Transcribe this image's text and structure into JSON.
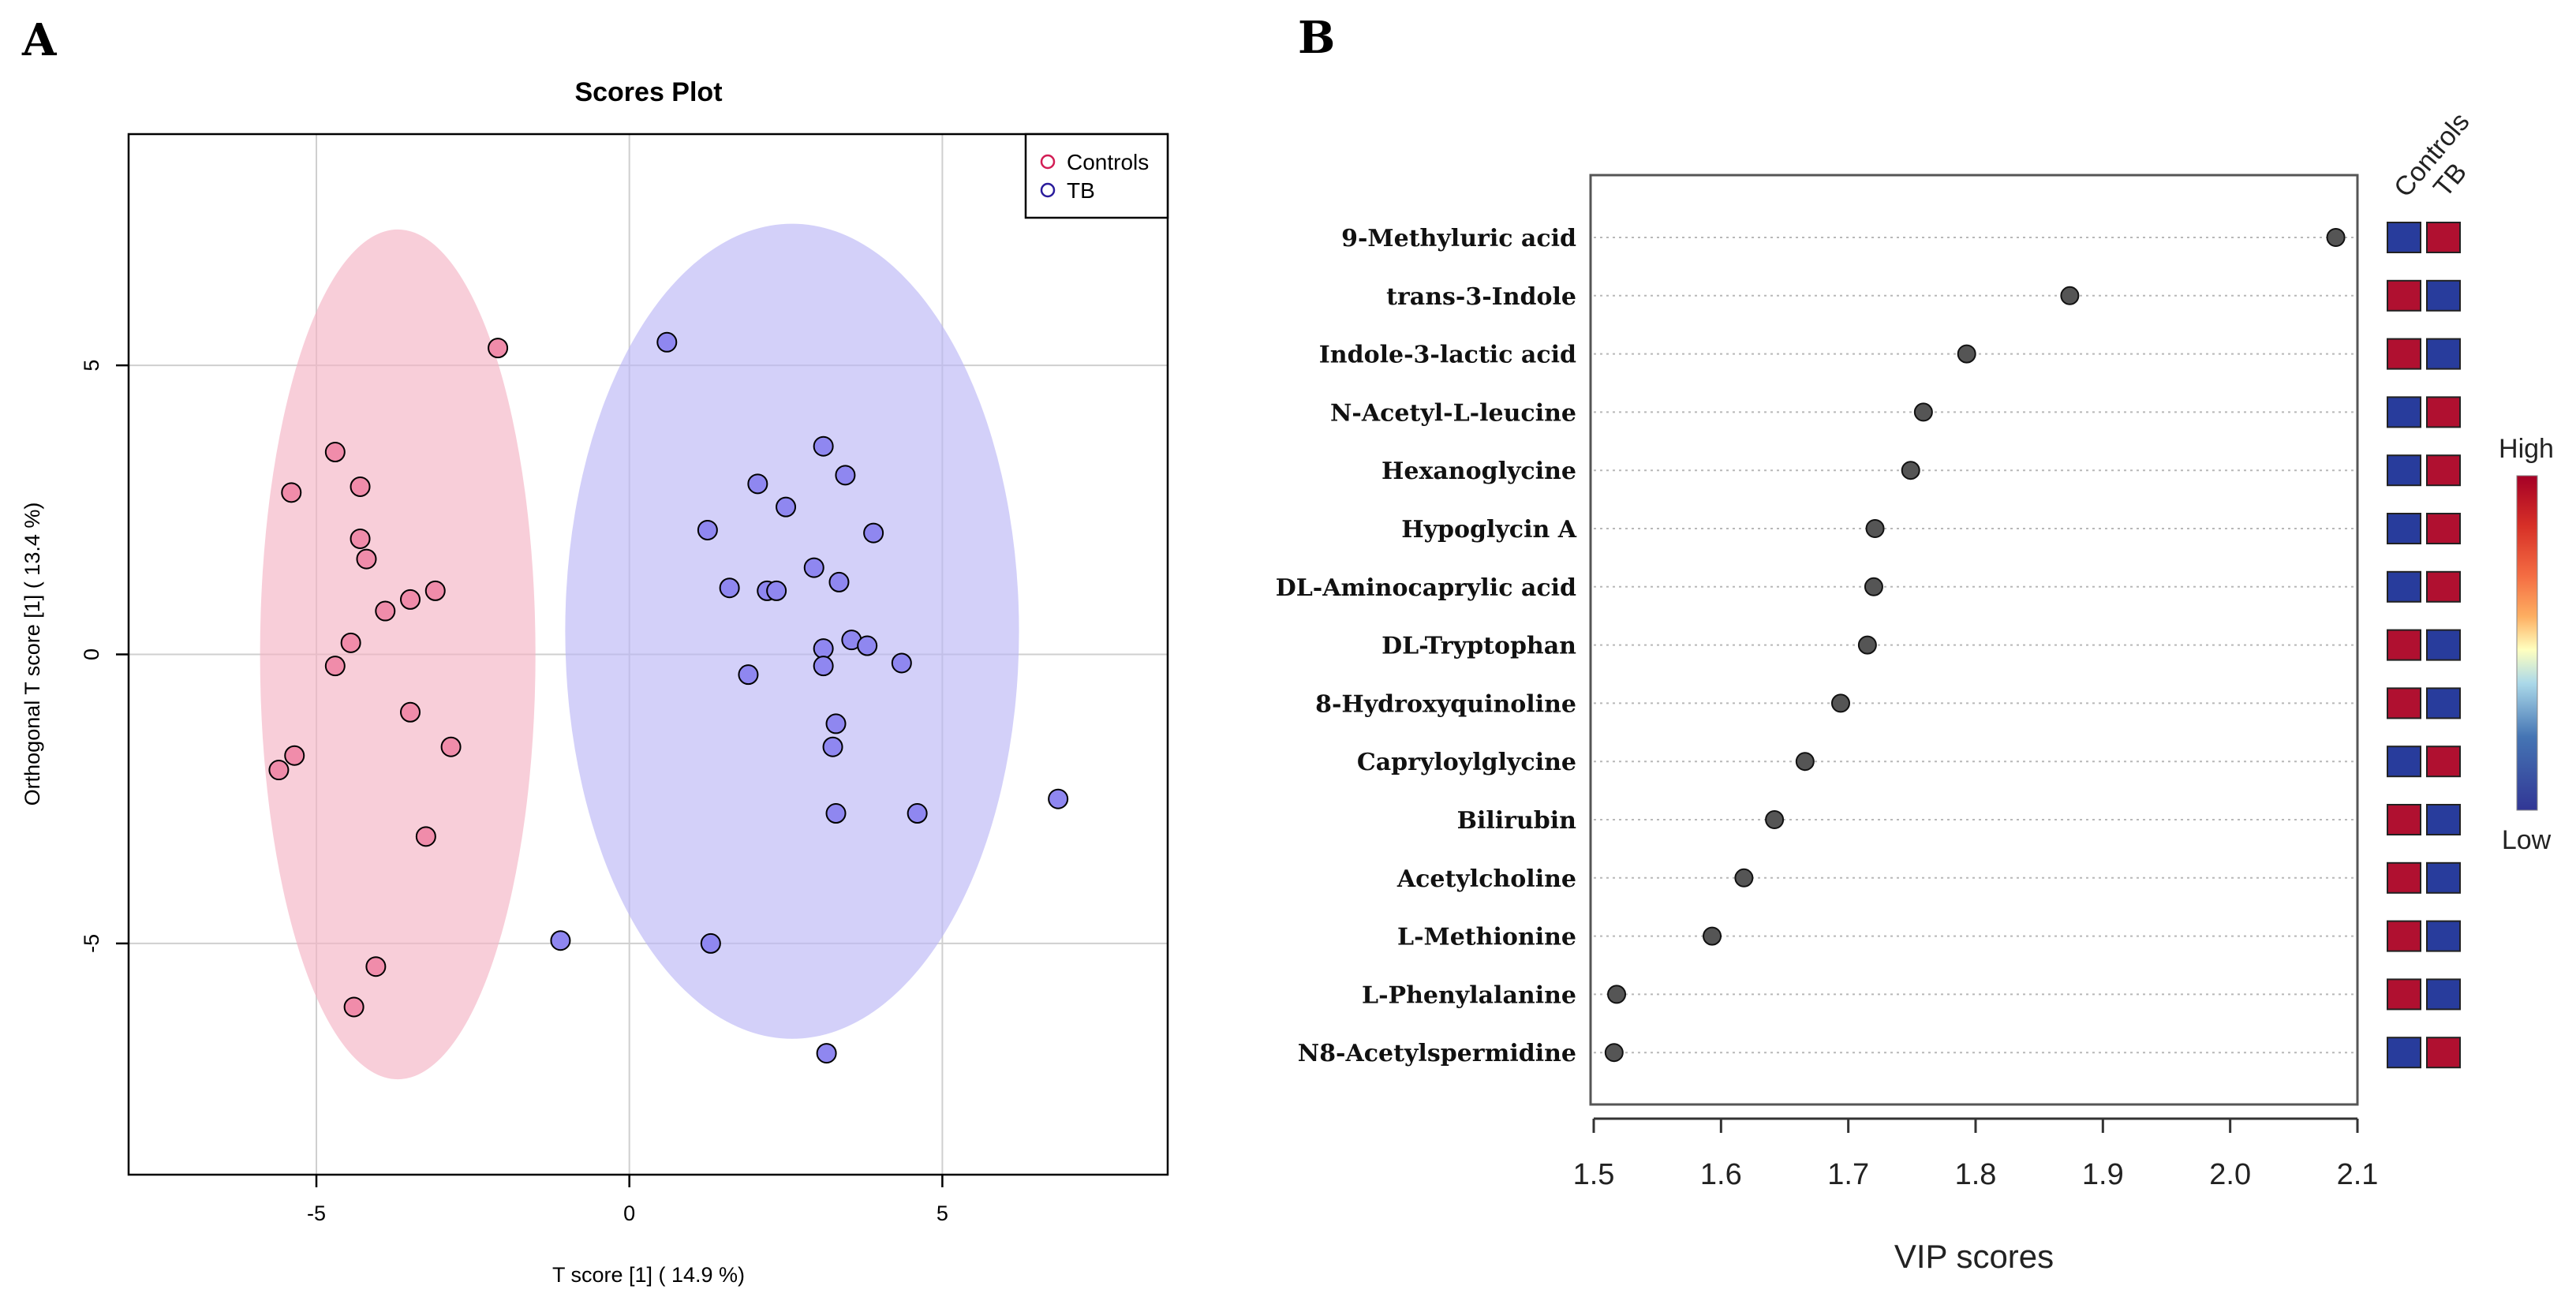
{
  "panels": {
    "a_letter": "A",
    "b_letter": "B"
  },
  "chart_data": [
    {
      "type": "scatter",
      "title": "Scores Plot",
      "xlabel": "T score [1] ( 14.9 %)",
      "ylabel": "Orthogonal T score [1] ( 13.4 %)",
      "xlim": [
        -8.0,
        8.6
      ],
      "ylim": [
        -9.0,
        9.0
      ],
      "xticks": [
        -5,
        0,
        5
      ],
      "xtick_labels": [
        "-5",
        "0",
        "5"
      ],
      "yticks": [
        -5,
        0,
        5
      ],
      "ytick_labels": [
        "-5",
        "0",
        "5"
      ],
      "grid": true,
      "legend_position": "top-right",
      "series": [
        {
          "name": "Controls",
          "color": "#f08caa",
          "ring_color": "#d21e55",
          "ellipse_color": "#f4b4c4",
          "ellipse": {
            "cx": -3.7,
            "cy": 0.0,
            "rx": 4.4,
            "ry": 7.35
          },
          "points": [
            [
              -2.1,
              5.3
            ],
            [
              -4.7,
              3.5
            ],
            [
              -5.4,
              2.8
            ],
            [
              -4.3,
              2.9
            ],
            [
              -4.3,
              2.0
            ],
            [
              -4.2,
              1.65
            ],
            [
              -3.1,
              1.1
            ],
            [
              -3.5,
              0.95
            ],
            [
              -3.9,
              0.75
            ],
            [
              -4.45,
              0.2
            ],
            [
              -4.7,
              -0.2
            ],
            [
              -3.5,
              -1.0
            ],
            [
              -2.85,
              -1.6
            ],
            [
              -5.35,
              -1.75
            ],
            [
              -5.6,
              -2.0
            ],
            [
              -3.25,
              -3.15
            ],
            [
              -4.05,
              -5.4
            ],
            [
              -4.4,
              -6.1
            ]
          ]
        },
        {
          "name": "TB",
          "color": "#8f87f0",
          "ring_color": "#2a1c9c",
          "ellipse_color": "#bbb7f6",
          "ellipse": {
            "cx": 2.6,
            "cy": 0.4,
            "rx": 7.25,
            "ry": 7.05
          },
          "points": [
            [
              0.6,
              5.4
            ],
            [
              3.1,
              3.6
            ],
            [
              3.45,
              3.1
            ],
            [
              2.05,
              2.95
            ],
            [
              2.5,
              2.55
            ],
            [
              1.25,
              2.15
            ],
            [
              3.9,
              2.1
            ],
            [
              2.95,
              1.5
            ],
            [
              3.35,
              1.25
            ],
            [
              1.6,
              1.15
            ],
            [
              2.2,
              1.1
            ],
            [
              2.35,
              1.1
            ],
            [
              3.55,
              0.25
            ],
            [
              3.1,
              0.1
            ],
            [
              3.8,
              0.15
            ],
            [
              4.35,
              -0.15
            ],
            [
              3.1,
              -0.2
            ],
            [
              1.9,
              -0.35
            ],
            [
              3.3,
              -1.2
            ],
            [
              3.25,
              -1.6
            ],
            [
              3.3,
              -2.75
            ],
            [
              4.6,
              -2.75
            ],
            [
              6.85,
              -2.5
            ],
            [
              -1.1,
              -4.95
            ],
            [
              1.3,
              -5.0
            ],
            [
              3.15,
              -6.9
            ]
          ]
        }
      ]
    },
    {
      "type": "dot",
      "xlabel": "VIP scores",
      "xlim": [
        1.5,
        2.1
      ],
      "xticks": [
        1.5,
        1.6,
        1.7,
        1.8,
        1.9,
        2.0,
        2.1
      ],
      "xtick_labels": [
        "1.5",
        "1.6",
        "1.7",
        "1.8",
        "1.9",
        "2.0",
        "2.1"
      ],
      "point_color": "#555555",
      "features": [
        {
          "label": "9-Methyluric acid",
          "vip": 2.083,
          "levels": [
            "Low",
            "High"
          ]
        },
        {
          "label": "trans-3-Indole",
          "vip": 1.874,
          "levels": [
            "High",
            "Low"
          ]
        },
        {
          "label": "Indole-3-lactic acid",
          "vip": 1.793,
          "levels": [
            "High",
            "Low"
          ]
        },
        {
          "label": "N-Acetyl-L-leucine",
          "vip": 1.759,
          "levels": [
            "Low",
            "High"
          ]
        },
        {
          "label": "Hexanoglycine",
          "vip": 1.749,
          "levels": [
            "Low",
            "High"
          ]
        },
        {
          "label": "Hypoglycin A",
          "vip": 1.721,
          "levels": [
            "Low",
            "High"
          ]
        },
        {
          "label": "DL-Aminocaprylic acid",
          "vip": 1.72,
          "levels": [
            "Low",
            "High"
          ]
        },
        {
          "label": "DL-Tryptophan",
          "vip": 1.715,
          "levels": [
            "High",
            "Low"
          ]
        },
        {
          "label": "8-Hydroxyquinoline",
          "vip": 1.694,
          "levels": [
            "High",
            "Low"
          ]
        },
        {
          "label": "Capryloylglycine",
          "vip": 1.666,
          "levels": [
            "Low",
            "High"
          ]
        },
        {
          "label": "Bilirubin",
          "vip": 1.642,
          "levels": [
            "High",
            "Low"
          ]
        },
        {
          "label": "Acetylcholine",
          "vip": 1.618,
          "levels": [
            "High",
            "Low"
          ]
        },
        {
          "label": "L-Methionine",
          "vip": 1.593,
          "levels": [
            "High",
            "Low"
          ]
        },
        {
          "label": "L-Phenylalanine",
          "vip": 1.518,
          "levels": [
            "High",
            "Low"
          ]
        },
        {
          "label": "N8-Acetylspermidine",
          "vip": 1.516,
          "levels": [
            "Low",
            "High"
          ]
        }
      ],
      "heatmap_columns": [
        "Controls",
        "TB"
      ],
      "colorbar": {
        "high_label": "High",
        "low_label": "Low",
        "high_color": "#b01030",
        "low_color": "#283c9c"
      }
    }
  ]
}
